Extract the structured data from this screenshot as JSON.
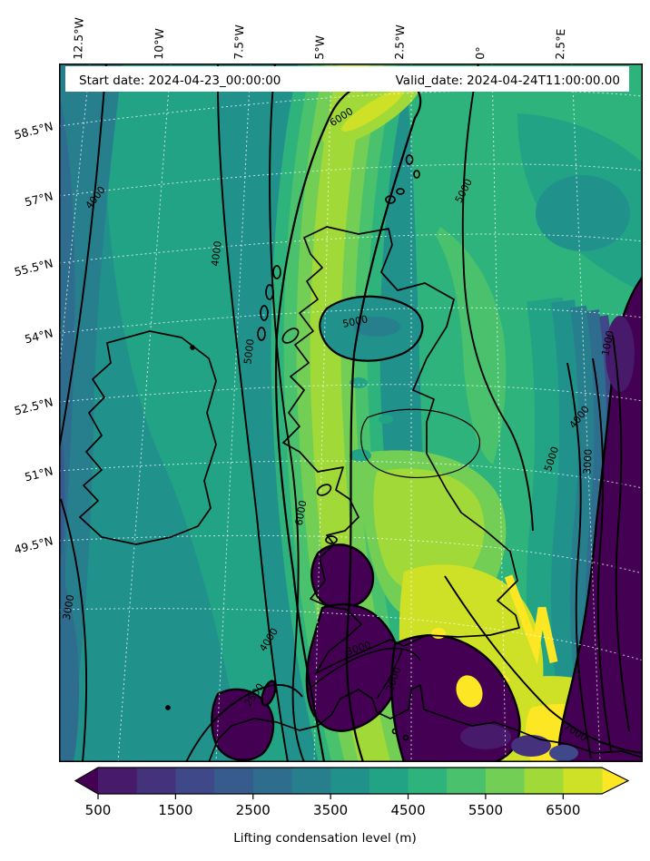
{
  "figure": {
    "title_bar": {
      "start_label": "Start date: 2024-04-23_00:00:00",
      "valid_label": "Valid_date: 2024-04-24T11:00:00.00"
    },
    "caption": "Lifting condensation level (m)"
  },
  "axes": {
    "top": [
      "12.5°W",
      "10°W",
      "7.5°W",
      "5°W",
      "2.5°W",
      "0°",
      "2.5°E"
    ],
    "left": [
      "58.5°N",
      "57°N",
      "55.5°N",
      "54°N",
      "52.5°N",
      "51°N",
      "49.5°N"
    ]
  },
  "chart_data": {
    "type": "heatmap",
    "title": "Lifting condensation level (m)",
    "start_date": "2024-04-23_00:00:00",
    "valid_date": "2024-04-24T11:00:00.00",
    "region": "British Isles and surrounding seas",
    "colormap": "viridis",
    "colorbar": {
      "label": "Lifting condensation level (m)",
      "orientation": "horizontal",
      "extend": "both",
      "boundaries": [
        500,
        1000,
        1500,
        2000,
        2500,
        3000,
        3500,
        4000,
        4500,
        5000,
        5500,
        6000,
        6500,
        7000
      ],
      "tick_values": [
        500,
        1500,
        2500,
        3500,
        4500,
        5500,
        6500
      ],
      "tick_labels": [
        "500",
        "1500",
        "2500",
        "3500",
        "4500",
        "5500",
        "6500"
      ],
      "palette": [
        "#440154",
        "#471a6c",
        "#45327d",
        "#3f4888",
        "#375b8c",
        "#2f6d8e",
        "#277f8e",
        "#21918c",
        "#22a386",
        "#2eb37c",
        "#4ac16d",
        "#72ce55",
        "#a0d938",
        "#cfe126",
        "#fde725"
      ],
      "under_color": "#440154",
      "over_color": "#fde725"
    },
    "contour_line_levels": [
      1000,
      2000,
      2500,
      3000,
      4000,
      5000,
      6000,
      7000
    ],
    "contour_labels": [
      {
        "text": "4000"
      },
      {
        "text": "4000"
      },
      {
        "text": "5000"
      },
      {
        "text": "6000"
      },
      {
        "text": "6000"
      },
      {
        "text": "5000"
      },
      {
        "text": "5000"
      },
      {
        "text": "1000"
      },
      {
        "text": "4000"
      },
      {
        "text": "5000"
      },
      {
        "text": "3000"
      },
      {
        "text": "3000"
      },
      {
        "text": "4000"
      },
      {
        "text": "2500"
      },
      {
        "text": "3000"
      },
      {
        "text": "2000"
      },
      {
        "text": "7000"
      }
    ],
    "gridline_color": "#ffffff",
    "coastline_color": "#000000"
  }
}
